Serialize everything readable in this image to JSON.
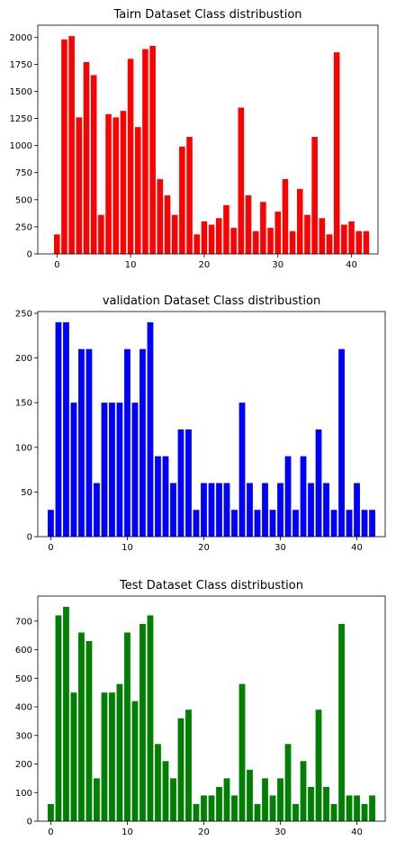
{
  "chart_data": [
    {
      "type": "bar",
      "title": "Tairn Dataset Class distribustion",
      "color": "#ff0000",
      "x": [
        0,
        1,
        2,
        3,
        4,
        5,
        6,
        7,
        8,
        9,
        10,
        11,
        12,
        13,
        14,
        15,
        16,
        17,
        18,
        19,
        20,
        21,
        22,
        23,
        24,
        25,
        26,
        27,
        28,
        29,
        30,
        31,
        32,
        33,
        34,
        35,
        36,
        37,
        38,
        39,
        40,
        41,
        42
      ],
      "values": [
        180,
        1980,
        2010,
        1260,
        1770,
        1650,
        360,
        1290,
        1260,
        1320,
        1800,
        1170,
        1890,
        1920,
        690,
        540,
        360,
        990,
        1080,
        180,
        300,
        270,
        330,
        450,
        240,
        1350,
        540,
        210,
        480,
        240,
        390,
        690,
        210,
        600,
        360,
        1080,
        330,
        180,
        1860,
        270,
        300,
        210,
        210
      ],
      "xlim": [
        -2.6,
        43.6
      ],
      "ylim": [
        0,
        2110.5
      ],
      "xticks": [
        0,
        10,
        20,
        30,
        40
      ],
      "yticks": [
        0,
        250,
        500,
        750,
        1000,
        1250,
        1500,
        1750,
        2000
      ],
      "xlabel": "",
      "ylabel": ""
    },
    {
      "type": "bar",
      "title": "validation Dataset Class distribustion",
      "color": "#0000ff",
      "x": [
        0,
        1,
        2,
        3,
        4,
        5,
        6,
        7,
        8,
        9,
        10,
        11,
        12,
        13,
        14,
        15,
        16,
        17,
        18,
        19,
        20,
        21,
        22,
        23,
        24,
        25,
        26,
        27,
        28,
        29,
        30,
        31,
        32,
        33,
        34,
        35,
        36,
        37,
        38,
        39,
        40,
        41,
        42
      ],
      "values": [
        30,
        240,
        240,
        150,
        210,
        210,
        60,
        150,
        150,
        150,
        210,
        150,
        210,
        240,
        90,
        90,
        60,
        120,
        120,
        30,
        60,
        60,
        60,
        60,
        30,
        150,
        60,
        30,
        60,
        30,
        60,
        90,
        30,
        90,
        60,
        120,
        60,
        30,
        210,
        30,
        60,
        30,
        30
      ],
      "xlim": [
        -1.7,
        43.7
      ],
      "ylim": [
        0,
        252
      ],
      "xticks": [
        0,
        10,
        20,
        30,
        40
      ],
      "yticks": [
        0,
        50,
        100,
        150,
        200,
        250
      ],
      "xlabel": "",
      "ylabel": ""
    },
    {
      "type": "bar",
      "title": "Test Dataset Class distribustion",
      "color": "#008000",
      "x": [
        0,
        1,
        2,
        3,
        4,
        5,
        6,
        7,
        8,
        9,
        10,
        11,
        12,
        13,
        14,
        15,
        16,
        17,
        18,
        19,
        20,
        21,
        22,
        23,
        24,
        25,
        26,
        27,
        28,
        29,
        30,
        31,
        32,
        33,
        34,
        35,
        36,
        37,
        38,
        39,
        40,
        41,
        42
      ],
      "values": [
        60,
        720,
        750,
        450,
        660,
        630,
        150,
        450,
        450,
        480,
        660,
        420,
        690,
        720,
        270,
        210,
        150,
        360,
        390,
        60,
        90,
        90,
        120,
        150,
        90,
        480,
        180,
        60,
        150,
        90,
        150,
        270,
        60,
        210,
        120,
        390,
        120,
        60,
        690,
        90,
        90,
        60,
        90
      ],
      "xlim": [
        -1.7,
        43.7
      ],
      "ylim": [
        0,
        787.5
      ],
      "xticks": [
        0,
        10,
        20,
        30,
        40
      ],
      "yticks": [
        0,
        100,
        200,
        300,
        400,
        500,
        600,
        700
      ],
      "xlabel": "",
      "ylabel": ""
    }
  ]
}
